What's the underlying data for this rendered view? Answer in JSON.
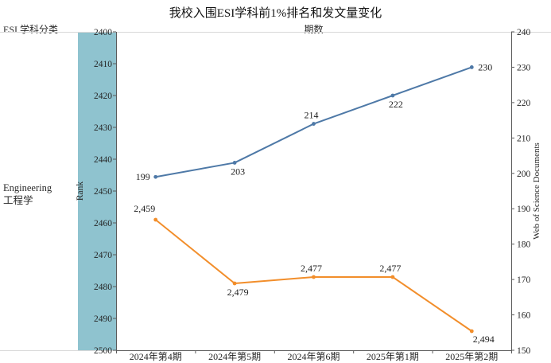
{
  "title": "我校入围ESI学科前1%排名和发文量变化",
  "header": {
    "left_label": "ESI 学科分类",
    "x_axis_title": "期数"
  },
  "sidebar": {
    "subject_en": "Engineering",
    "subject_zh": "工程学"
  },
  "colors": {
    "rank_band": "#8FC3CF",
    "documents_line": "#4E79A7",
    "rank_line": "#F28E2B",
    "axis_line": "#5a5a5a",
    "separator_line": "#d9d9d9",
    "text": "#1e1e1e"
  },
  "chart_data": {
    "type": "line",
    "title": "我校入围ESI学科前1%排名和发文量变化",
    "xlabel": "期数",
    "categories": [
      "2024年第4期",
      "2024年第5期",
      "2024年第6期",
      "2025年第1期",
      "2025年第2期"
    ],
    "left_axis": {
      "label": "Rank",
      "top_value": 2400,
      "bottom_value": 2500,
      "ticks": [
        2400,
        2410,
        2420,
        2430,
        2440,
        2450,
        2460,
        2470,
        2480,
        2490,
        2500
      ]
    },
    "right_axis": {
      "label": "Web of Science Documents",
      "top_value": 240,
      "bottom_value": 150,
      "ticks": [
        240,
        230,
        220,
        210,
        200,
        190,
        180,
        170,
        160,
        150
      ]
    },
    "series": [
      {
        "name": "Web of Science Documents",
        "axis": "right",
        "color": "#4E79A7",
        "values": [
          199,
          203,
          214,
          222,
          230
        ],
        "labels": [
          "199",
          "203",
          "214",
          "222",
          "230"
        ],
        "label_placements": [
          "left",
          "below",
          "above",
          "below",
          "right"
        ]
      },
      {
        "name": "Rank",
        "axis": "left",
        "color": "#F28E2B",
        "values": [
          2459,
          2479,
          2477,
          2477,
          2494
        ],
        "labels": [
          "2,459",
          "2,479",
          "2,477",
          "2,477",
          "2,494"
        ],
        "label_placements": [
          "above-left",
          "below",
          "above",
          "above",
          "below-right"
        ]
      }
    ],
    "legend": "none",
    "grid": false
  }
}
